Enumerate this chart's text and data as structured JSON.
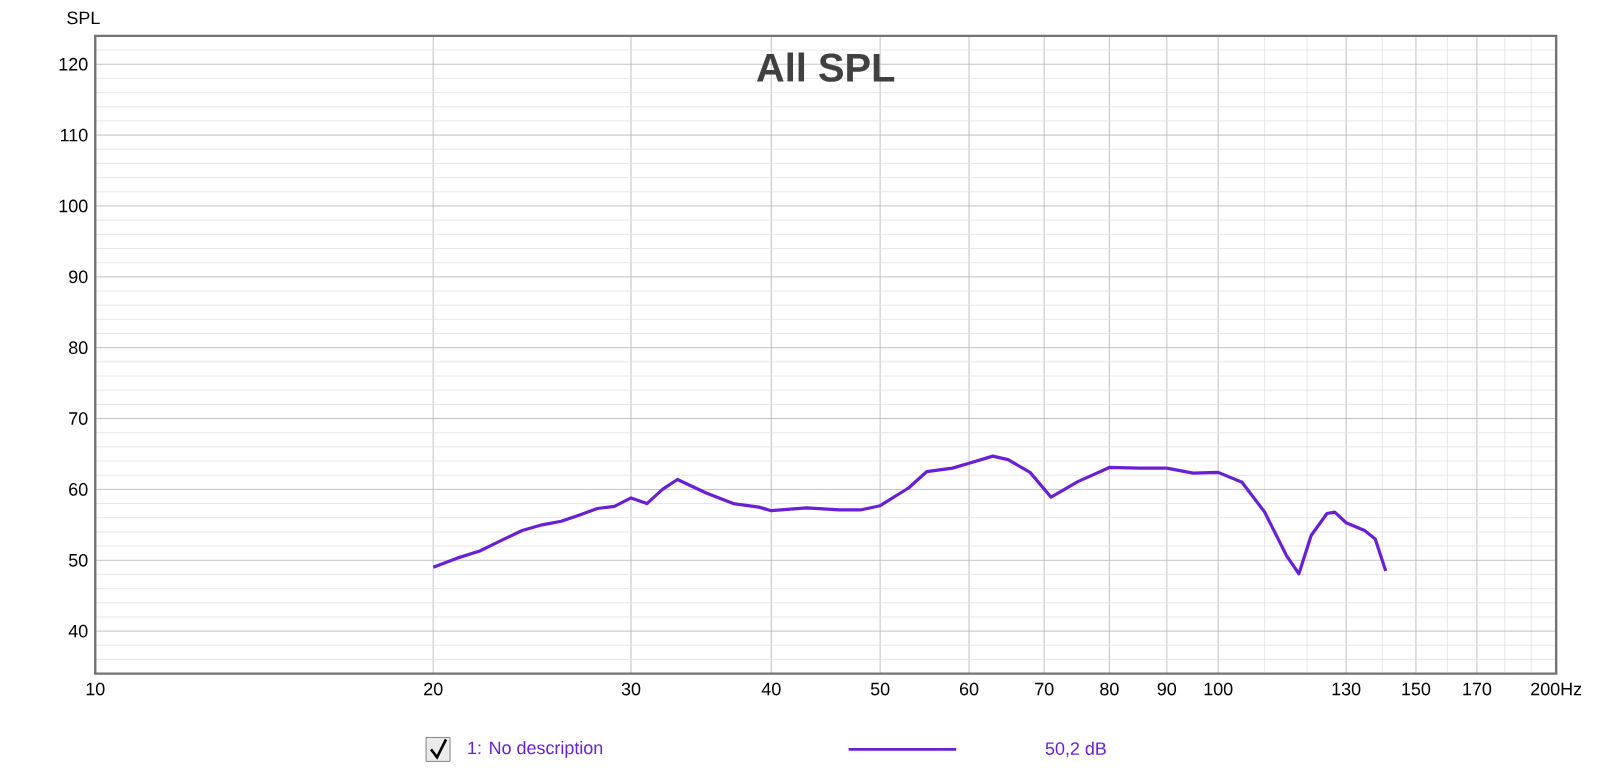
{
  "chart_data": {
    "type": "line",
    "title": "All SPL",
    "ylabel": "SPL",
    "x": [
      20,
      21,
      22,
      23,
      24,
      25,
      26,
      27,
      28,
      29,
      30,
      31,
      32,
      33,
      35,
      37,
      39,
      40,
      43,
      46,
      48,
      50,
      53,
      55,
      58,
      60,
      63,
      65,
      68,
      71,
      75,
      80,
      85,
      90,
      95,
      100,
      105,
      110,
      115,
      118,
      121,
      125,
      127,
      130,
      135,
      138,
      141
    ],
    "series": [
      {
        "name": "1: No description",
        "color": "#6a1fd6",
        "values": [
          49.0,
          50.3,
          51.3,
          52.8,
          54.2,
          55.0,
          55.5,
          56.4,
          57.3,
          57.6,
          58.8,
          58.0,
          60.0,
          61.4,
          59.5,
          58.0,
          57.5,
          57.0,
          57.4,
          57.1,
          57.1,
          57.7,
          60.2,
          62.5,
          63.0,
          63.7,
          64.7,
          64.2,
          62.4,
          58.9,
          61.1,
          63.1,
          63.0,
          63.0,
          62.3,
          62.4,
          61.0,
          56.8,
          50.7,
          48.1,
          53.5,
          56.6,
          56.8,
          55.3,
          54.2,
          53.0,
          48.5
        ]
      }
    ],
    "annotations": [
      "50,2 dB"
    ],
    "log": "x",
    "xlim": [
      10,
      200
    ],
    "ylim": [
      34,
      124
    ],
    "xticks": [
      10,
      20,
      30,
      40,
      50,
      60,
      70,
      80,
      90,
      100,
      130,
      150,
      170,
      {
        "value": 200,
        "label": "200Hz"
      }
    ],
    "yticks": [
      40,
      50,
      60,
      70,
      80,
      90,
      100,
      110,
      120
    ],
    "grid": true,
    "legend": "bottom",
    "marker": "none",
    "line_style": "solid"
  }
}
